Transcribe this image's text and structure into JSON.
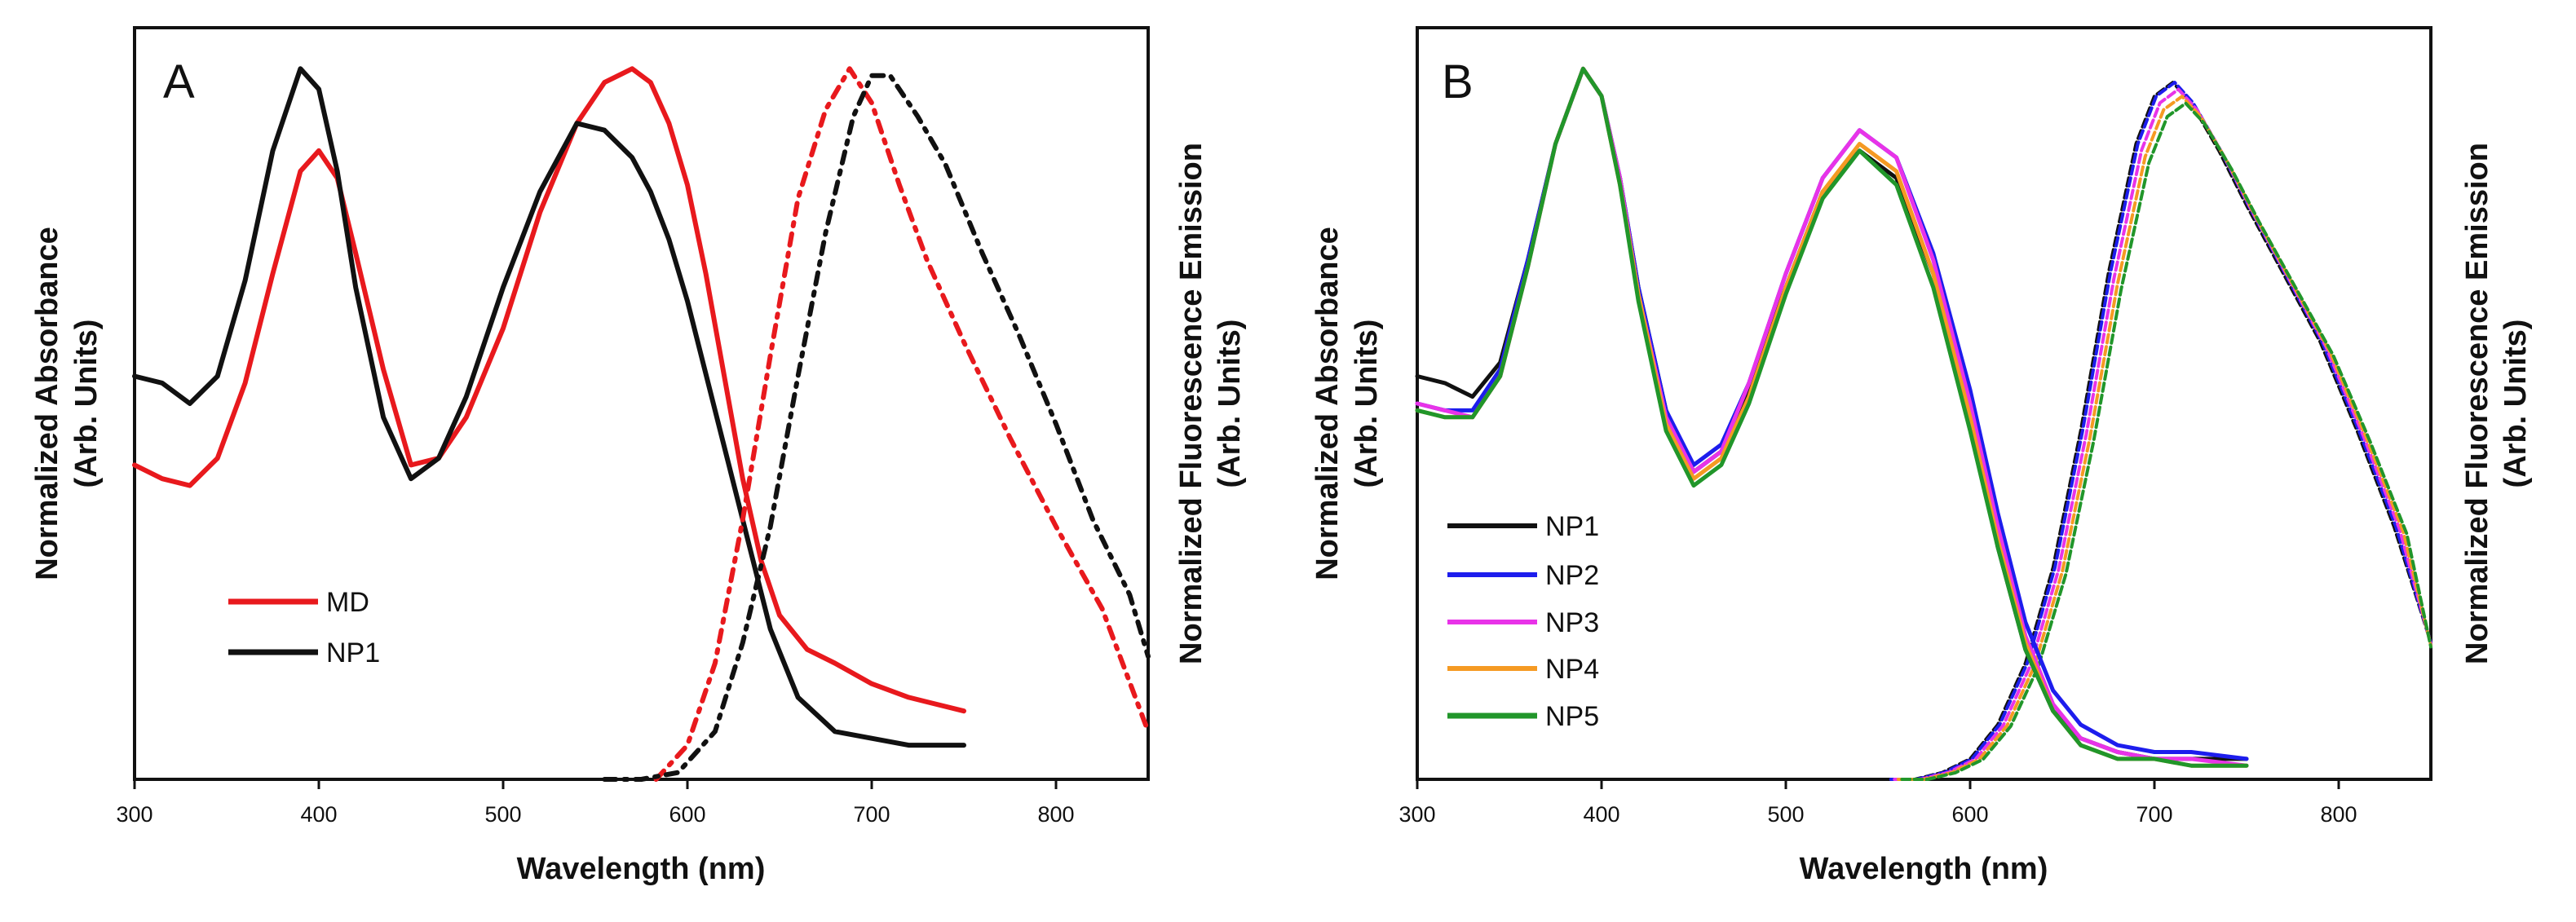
{
  "chart_data": [
    {
      "type": "line",
      "panel": "A",
      "panel_label": "A",
      "xlabel": "Wavelength (nm)",
      "ylabel_left": [
        "Normalized Absorbance",
        "(Arb. Units)"
      ],
      "ylabel_right": [
        "Normalized Fluorescence Emission",
        "(Arb. Units)"
      ],
      "xlim": [
        300,
        850
      ],
      "ylim": [
        0,
        1.1
      ],
      "xticks": [
        300,
        400,
        500,
        600,
        700,
        800
      ],
      "legend": [
        "MD",
        "NP1"
      ],
      "legend_position": "lower-left",
      "series": [
        {
          "name": "MD",
          "kind": "absorbance",
          "style": "solid",
          "color": "#e8191d",
          "in_legend": true,
          "x": [
            300,
            315,
            330,
            345,
            360,
            375,
            390,
            400,
            410,
            420,
            435,
            450,
            465,
            480,
            500,
            520,
            540,
            555,
            570,
            580,
            590,
            600,
            610,
            620,
            630,
            640,
            650,
            665,
            680,
            700,
            720,
            750
          ],
          "y": [
            0.46,
            0.44,
            0.43,
            0.47,
            0.58,
            0.74,
            0.89,
            0.92,
            0.88,
            0.77,
            0.6,
            0.46,
            0.47,
            0.53,
            0.66,
            0.83,
            0.96,
            1.02,
            1.04,
            1.02,
            0.96,
            0.87,
            0.74,
            0.59,
            0.44,
            0.32,
            0.24,
            0.19,
            0.17,
            0.14,
            0.12,
            0.1
          ]
        },
        {
          "name": "NP1",
          "kind": "absorbance",
          "style": "solid",
          "color": "#111111",
          "in_legend": true,
          "x": [
            300,
            315,
            330,
            345,
            360,
            375,
            390,
            400,
            410,
            420,
            435,
            450,
            465,
            480,
            500,
            520,
            540,
            555,
            570,
            580,
            590,
            600,
            615,
            630,
            645,
            660,
            680,
            700,
            720,
            750
          ],
          "y": [
            0.59,
            0.58,
            0.55,
            0.59,
            0.73,
            0.92,
            1.04,
            1.01,
            0.89,
            0.72,
            0.53,
            0.44,
            0.47,
            0.56,
            0.72,
            0.86,
            0.96,
            0.95,
            0.91,
            0.86,
            0.79,
            0.7,
            0.54,
            0.38,
            0.22,
            0.12,
            0.07,
            0.06,
            0.05,
            0.05
          ]
        },
        {
          "name": "MD",
          "kind": "emission",
          "style": "dashdot",
          "color": "#e8191d",
          "in_legend": false,
          "x": [
            583,
            600,
            615,
            630,
            645,
            660,
            675,
            688,
            700,
            715,
            730,
            750,
            775,
            800,
            825,
            850
          ],
          "y": [
            0.0,
            0.05,
            0.17,
            0.38,
            0.62,
            0.85,
            0.98,
            1.04,
            0.99,
            0.87,
            0.76,
            0.64,
            0.5,
            0.37,
            0.25,
            0.07
          ]
        },
        {
          "name": "NP1",
          "kind": "emission",
          "style": "dashdot",
          "color": "#111111",
          "in_legend": false,
          "x": [
            555,
            575,
            595,
            615,
            630,
            645,
            660,
            675,
            690,
            700,
            710,
            725,
            740,
            760,
            780,
            800,
            820,
            840,
            850
          ],
          "y": [
            0.0,
            0.0,
            0.01,
            0.07,
            0.2,
            0.37,
            0.59,
            0.8,
            0.97,
            1.03,
            1.03,
            0.97,
            0.9,
            0.77,
            0.65,
            0.52,
            0.38,
            0.27,
            0.18
          ]
        }
      ]
    },
    {
      "type": "line",
      "panel": "B",
      "panel_label": "B",
      "xlabel": "Wavelength (nm)",
      "ylabel_left": [
        "Normalized Absorbance",
        "(Arb. Units)"
      ],
      "ylabel_right": [
        "Normalized Fluorescence Emission",
        "(Arb. Units)"
      ],
      "xlim": [
        300,
        850
      ],
      "ylim": [
        0,
        1.1
      ],
      "xticks": [
        300,
        400,
        500,
        600,
        700,
        800
      ],
      "legend": [
        "NP1",
        "NP2",
        "NP3",
        "NP4",
        "NP5"
      ],
      "legend_position": "lower-left",
      "series": [
        {
          "name": "NP1",
          "color": "#111111",
          "x": [
            300,
            315,
            330,
            345,
            360,
            375,
            390,
            400,
            410,
            420,
            435,
            450,
            465,
            480,
            500,
            520,
            540,
            560,
            580,
            600,
            615,
            630,
            645,
            660,
            680,
            700,
            720,
            750
          ],
          "y": [
            0.59,
            0.58,
            0.56,
            0.61,
            0.76,
            0.93,
            1.04,
            1.0,
            0.88,
            0.72,
            0.54,
            0.45,
            0.48,
            0.57,
            0.72,
            0.86,
            0.92,
            0.88,
            0.74,
            0.53,
            0.34,
            0.19,
            0.1,
            0.06,
            0.04,
            0.03,
            0.03,
            0.03
          ]
        },
        {
          "name": "NP2",
          "color": "#1d1ded",
          "x": [
            300,
            315,
            330,
            345,
            360,
            375,
            390,
            400,
            410,
            420,
            435,
            450,
            465,
            480,
            500,
            520,
            540,
            560,
            580,
            600,
            615,
            630,
            645,
            660,
            680,
            700,
            720,
            750
          ],
          "y": [
            0.55,
            0.54,
            0.54,
            0.6,
            0.76,
            0.93,
            1.04,
            1.0,
            0.88,
            0.72,
            0.54,
            0.46,
            0.49,
            0.58,
            0.74,
            0.88,
            0.95,
            0.91,
            0.77,
            0.57,
            0.39,
            0.23,
            0.13,
            0.08,
            0.05,
            0.04,
            0.04,
            0.03
          ]
        },
        {
          "name": "NP3",
          "color": "#e833e8",
          "x": [
            300,
            315,
            330,
            345,
            360,
            375,
            390,
            400,
            410,
            420,
            435,
            450,
            465,
            480,
            500,
            520,
            540,
            560,
            580,
            600,
            615,
            630,
            645,
            660,
            680,
            700,
            720,
            750
          ],
          "y": [
            0.55,
            0.54,
            0.53,
            0.59,
            0.75,
            0.93,
            1.04,
            1.0,
            0.88,
            0.71,
            0.53,
            0.45,
            0.48,
            0.58,
            0.74,
            0.88,
            0.95,
            0.91,
            0.76,
            0.55,
            0.37,
            0.21,
            0.11,
            0.06,
            0.04,
            0.03,
            0.03,
            0.02
          ]
        },
        {
          "name": "NP4",
          "color": "#f59a23",
          "x": [
            300,
            315,
            330,
            345,
            360,
            375,
            390,
            400,
            410,
            420,
            435,
            450,
            465,
            480,
            500,
            520,
            540,
            560,
            580,
            600,
            615,
            630,
            645,
            660,
            680,
            700,
            720,
            750
          ],
          "y": [
            0.54,
            0.53,
            0.53,
            0.59,
            0.75,
            0.93,
            1.04,
            1.0,
            0.87,
            0.71,
            0.52,
            0.44,
            0.47,
            0.56,
            0.72,
            0.86,
            0.93,
            0.89,
            0.74,
            0.53,
            0.35,
            0.2,
            0.1,
            0.05,
            0.03,
            0.03,
            0.02,
            0.02
          ]
        },
        {
          "name": "NP5",
          "color": "#21962a",
          "x": [
            300,
            315,
            330,
            345,
            360,
            375,
            390,
            400,
            410,
            420,
            435,
            450,
            465,
            480,
            500,
            520,
            540,
            560,
            580,
            600,
            615,
            630,
            645,
            660,
            680,
            700,
            720,
            750
          ],
          "y": [
            0.54,
            0.53,
            0.53,
            0.59,
            0.75,
            0.93,
            1.04,
            1.0,
            0.87,
            0.7,
            0.51,
            0.43,
            0.46,
            0.55,
            0.71,
            0.85,
            0.92,
            0.87,
            0.72,
            0.51,
            0.34,
            0.19,
            0.1,
            0.05,
            0.03,
            0.03,
            0.02,
            0.02
          ]
        }
      ],
      "emission": {
        "x": [
          556,
          570,
          585,
          600,
          615,
          630,
          645,
          660,
          675,
          690,
          700,
          710,
          720,
          735,
          750,
          770,
          790,
          810,
          830,
          850
        ],
        "y": [
          0.0,
          0.0,
          0.01,
          0.03,
          0.08,
          0.17,
          0.31,
          0.51,
          0.74,
          0.93,
          1.0,
          1.02,
          0.99,
          0.92,
          0.84,
          0.74,
          0.64,
          0.51,
          0.37,
          0.2
        ],
        "x_shift": {
          "NP1": 0,
          "NP2": 1,
          "NP3": 3,
          "NP4": 5,
          "NP5": 7
        },
        "scale": {
          "NP1": 1.0,
          "NP2": 1.0,
          "NP3": 0.99,
          "NP4": 0.98,
          "NP5": 0.97
        }
      }
    }
  ]
}
